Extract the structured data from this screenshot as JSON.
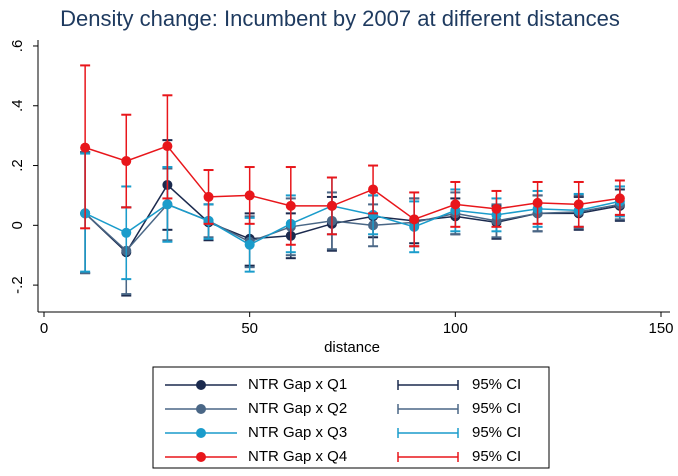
{
  "chart_data": {
    "type": "line",
    "title": "Density change: Incumbent by 2007 at different distances",
    "x_label": "distance",
    "x": [
      10,
      20,
      30,
      40,
      50,
      60,
      70,
      80,
      90,
      100,
      110,
      120,
      130,
      140
    ],
    "xlim": [
      0,
      150
    ],
    "xticks": [
      0,
      50,
      100,
      150
    ],
    "ylim": [
      -0.29,
      0.62
    ],
    "yticks": [
      {
        "value": -0.2,
        "label": "-.2"
      },
      0,
      {
        "value": 0.2,
        "label": ".2"
      },
      {
        "value": 0.4,
        "label": ".4"
      },
      {
        "value": 0.6,
        "label": ".6"
      }
    ],
    "grid": false,
    "series": [
      {
        "name": "NTR Gap x Q1",
        "color": "#1b2a4e",
        "ci_label": "95% CI",
        "values": [
          0.04,
          -0.09,
          0.135,
          0.01,
          -0.045,
          -0.035,
          0.005,
          0.03,
          0.015,
          0.03,
          0.01,
          0.04,
          0.04,
          0.065
        ],
        "ci_low": [
          -0.16,
          -0.235,
          -0.015,
          -0.05,
          -0.135,
          -0.11,
          -0.085,
          -0.04,
          -0.06,
          -0.03,
          -0.045,
          -0.02,
          -0.015,
          0.015
        ],
        "ci_high": [
          0.245,
          0.06,
          0.285,
          0.07,
          0.04,
          0.04,
          0.095,
          0.1,
          0.09,
          0.09,
          0.065,
          0.1,
          0.095,
          0.12
        ]
      },
      {
        "name": "NTR Gap x Q2",
        "color": "#4a6786",
        "ci_label": "95% CI",
        "values": [
          0.04,
          -0.085,
          0.07,
          0.015,
          -0.055,
          -0.005,
          0.015,
          0,
          0.01,
          0.04,
          0.015,
          0.04,
          0.045,
          0.07
        ],
        "ci_low": [
          -0.16,
          -0.23,
          -0.05,
          -0.04,
          -0.14,
          -0.1,
          -0.08,
          -0.07,
          -0.07,
          -0.03,
          -0.04,
          -0.02,
          -0.01,
          0.02
        ],
        "ci_high": [
          0.245,
          0.06,
          0.19,
          0.07,
          0.03,
          0.09,
          0.11,
          0.07,
          0.09,
          0.11,
          0.07,
          0.1,
          0.1,
          0.13
        ]
      },
      {
        "name": "NTR Gap x Q3",
        "color": "#1a9ccb",
        "ci_label": "95% CI",
        "values": [
          0.04,
          -0.025,
          0.07,
          0.015,
          -0.065,
          0.005,
          0.065,
          0.035,
          -0.005,
          0.05,
          0.035,
          0.055,
          0.05,
          0.08
        ],
        "ci_low": [
          -0.155,
          -0.18,
          -0.055,
          -0.045,
          -0.155,
          -0.09,
          -0.03,
          -0.03,
          -0.09,
          -0.02,
          -0.02,
          -0.005,
          -0.005,
          0.03
        ],
        "ci_high": [
          0.24,
          0.13,
          0.195,
          0.07,
          0.025,
          0.1,
          0.16,
          0.1,
          0.08,
          0.12,
          0.09,
          0.115,
          0.105,
          0.13
        ]
      },
      {
        "name": "NTR Gap x Q4",
        "color": "#e8161b",
        "ci_label": "95% CI",
        "values": [
          0.26,
          0.215,
          0.265,
          0.095,
          0.1,
          0.065,
          0.065,
          0.12,
          0.02,
          0.07,
          0.055,
          0.075,
          0.07,
          0.09
        ],
        "ci_low": [
          -0.01,
          0.06,
          0.09,
          0.005,
          0.005,
          -0.065,
          -0.03,
          0.04,
          -0.07,
          -0.005,
          -0.005,
          0.005,
          -0.005,
          0.035
        ],
        "ci_high": [
          0.535,
          0.37,
          0.435,
          0.185,
          0.195,
          0.195,
          0.16,
          0.2,
          0.11,
          0.145,
          0.115,
          0.145,
          0.145,
          0.15
        ]
      }
    ]
  }
}
